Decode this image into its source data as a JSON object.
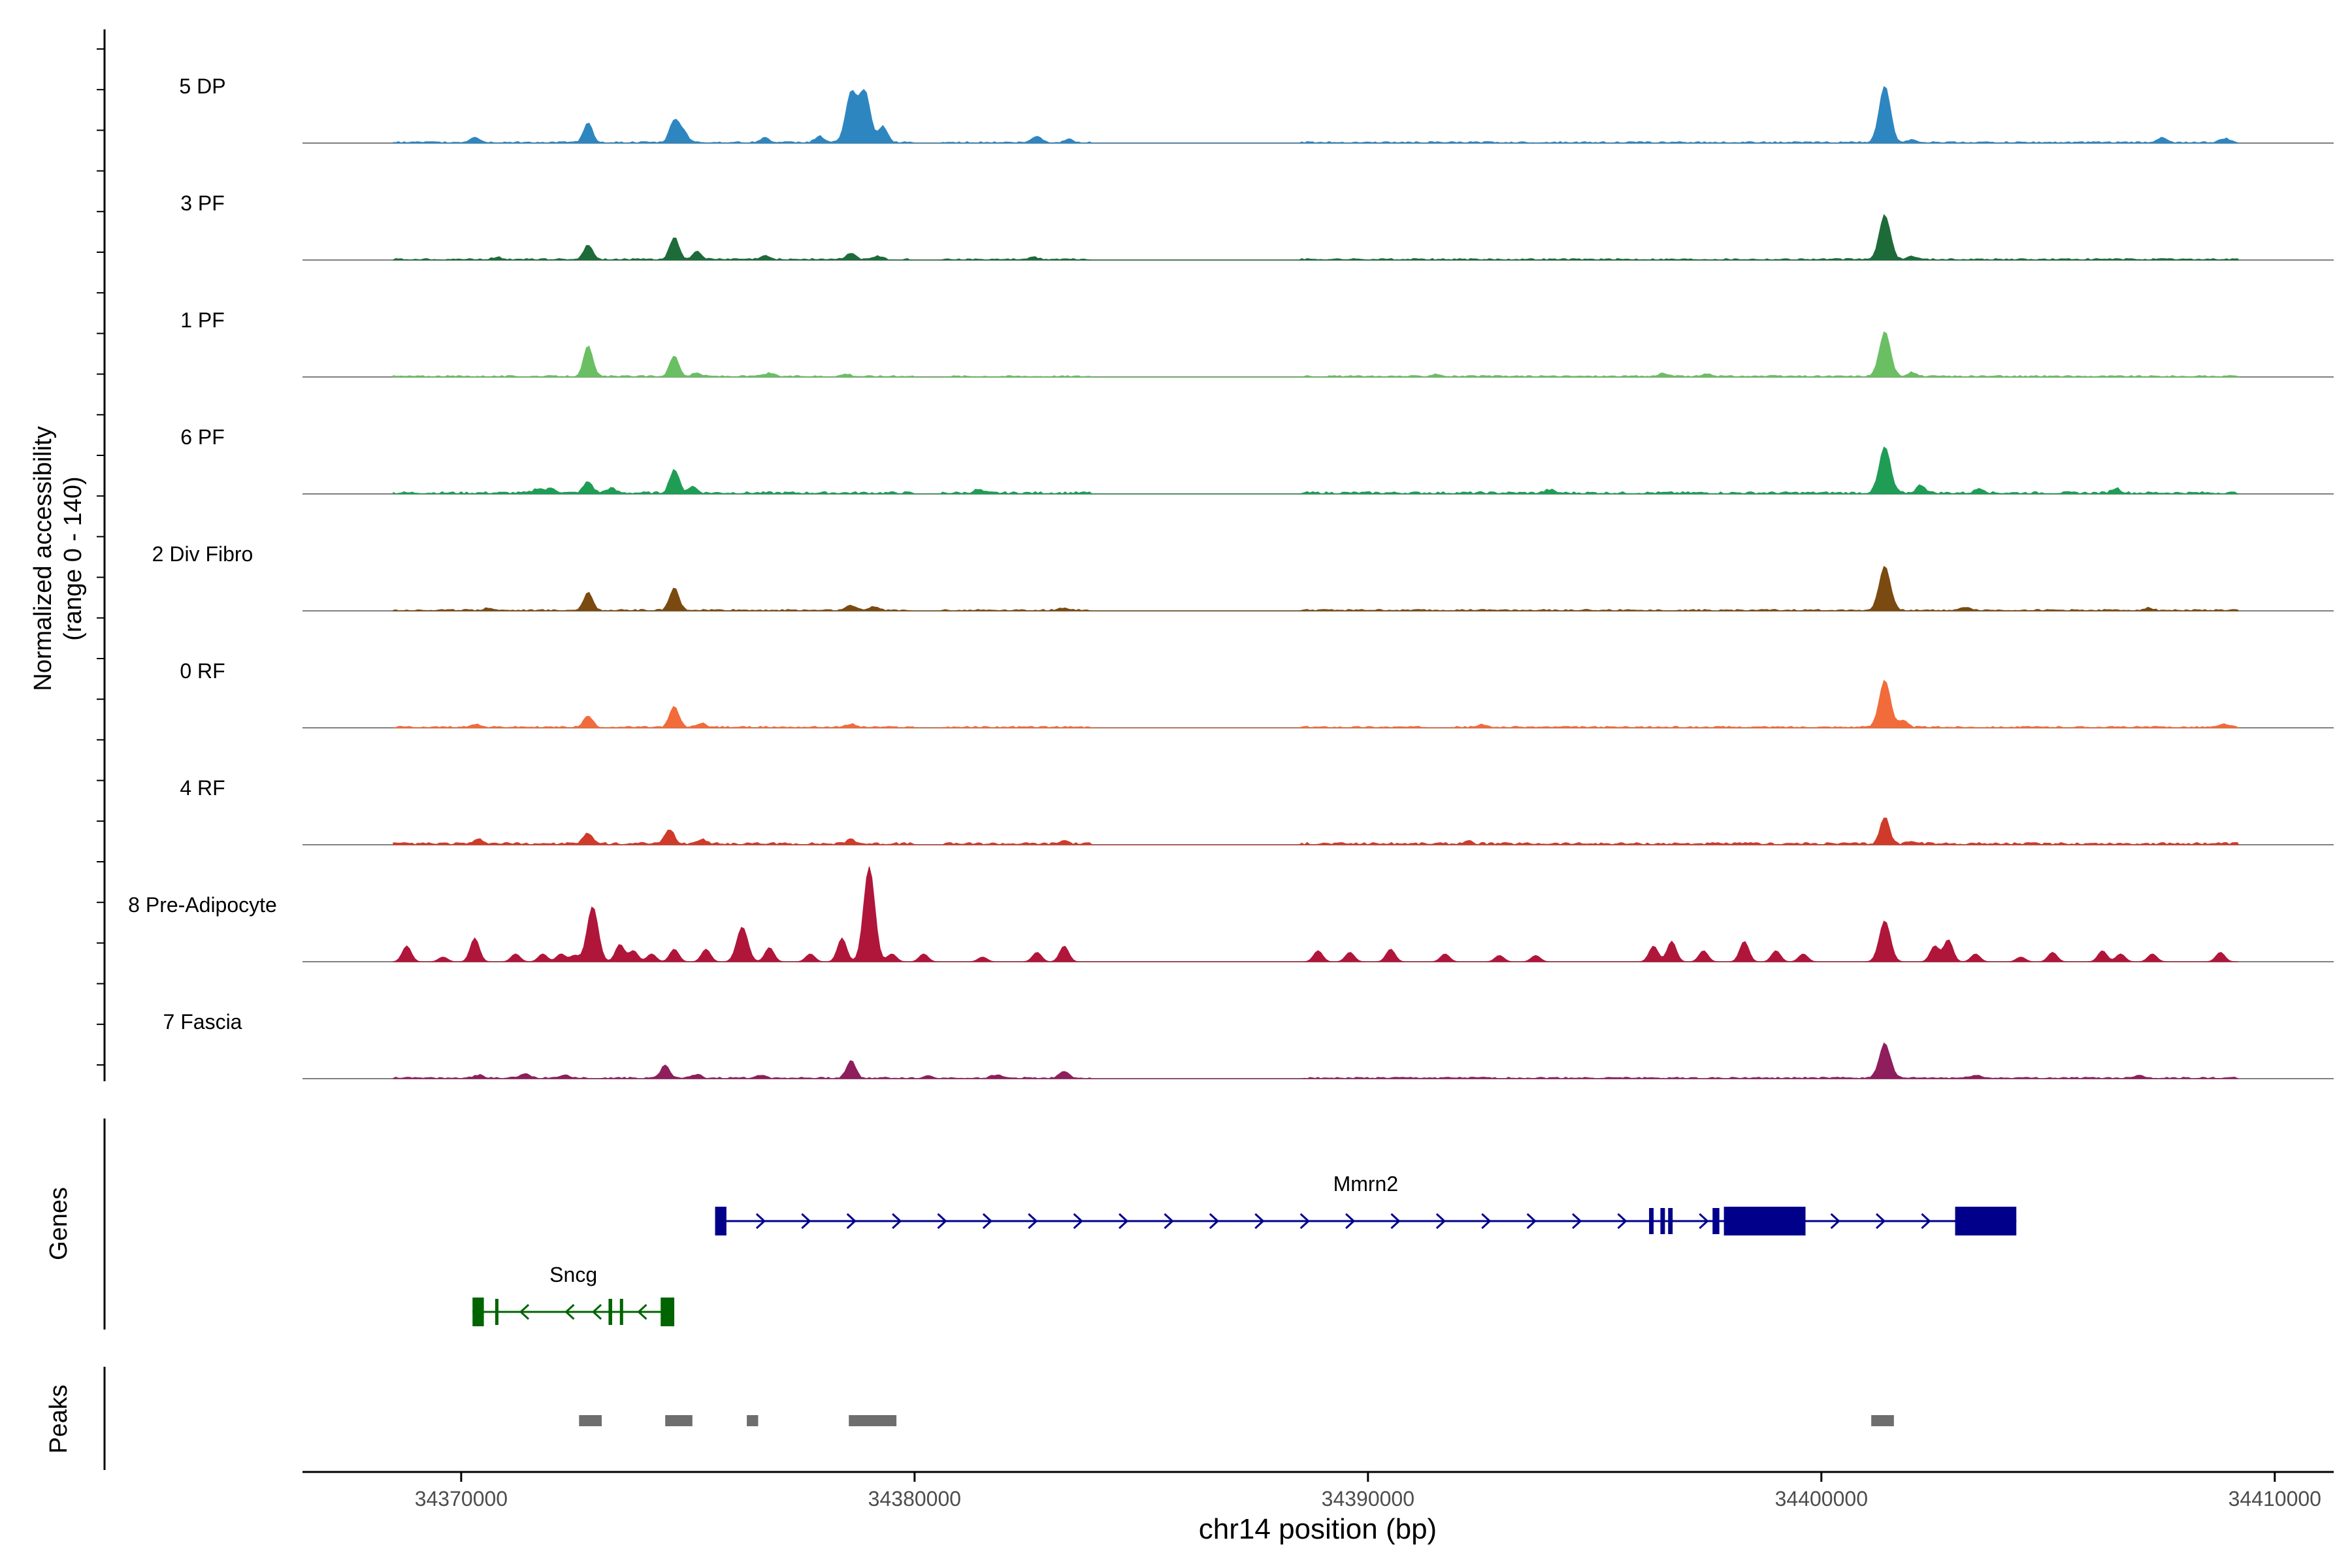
{
  "chart_data": {
    "type": "area",
    "title": "",
    "ylabel_line1": "Normalized accessibility",
    "ylabel_line2": "(range 0 - 140)",
    "ylim": [
      0,
      140
    ],
    "xlabel": "chr14 position (bp)",
    "xlim": [
      34366500,
      34411300
    ],
    "x_ticks": [
      34370000,
      34380000,
      34390000,
      34400000,
      34410000
    ],
    "x_tick_labels": [
      "34370000",
      "34380000",
      "34390000",
      "34400000",
      "34410000"
    ],
    "tracks": [
      {
        "name": "5 DP",
        "color": "#2E86C1",
        "noise": 2,
        "peaks": [
          [
            34370300,
            7
          ],
          [
            34372800,
            24
          ],
          [
            34374700,
            28
          ],
          [
            34374900,
            14
          ],
          [
            34376700,
            6
          ],
          [
            34377900,
            8
          ],
          [
            34378600,
            62
          ],
          [
            34378900,
            64
          ],
          [
            34379300,
            20
          ],
          [
            34382700,
            8
          ],
          [
            34383400,
            4
          ],
          [
            34401400,
            72
          ],
          [
            34402000,
            4
          ],
          [
            34407500,
            6
          ],
          [
            34408900,
            5
          ]
        ]
      },
      {
        "name": "3 PF",
        "color": "#1E6B3A",
        "noise": 2,
        "peaks": [
          [
            34370800,
            3
          ],
          [
            34372800,
            18
          ],
          [
            34374700,
            28
          ],
          [
            34375200,
            10
          ],
          [
            34376700,
            4
          ],
          [
            34378600,
            8
          ],
          [
            34379200,
            4
          ],
          [
            34382600,
            3
          ],
          [
            34401400,
            56
          ],
          [
            34402000,
            4
          ]
        ]
      },
      {
        "name": "1 PF",
        "color": "#6BBF63",
        "noise": 2,
        "peaks": [
          [
            34372800,
            38
          ],
          [
            34374700,
            26
          ],
          [
            34375200,
            4
          ],
          [
            34376800,
            4
          ],
          [
            34378500,
            3
          ],
          [
            34391500,
            3
          ],
          [
            34396500,
            4
          ],
          [
            34397500,
            3
          ],
          [
            34401400,
            56
          ],
          [
            34402000,
            5
          ]
        ]
      },
      {
        "name": "6 PF",
        "color": "#1F9D55",
        "noise": 3,
        "peaks": [
          [
            34371700,
            6
          ],
          [
            34372000,
            6
          ],
          [
            34372800,
            14
          ],
          [
            34373300,
            6
          ],
          [
            34374700,
            30
          ],
          [
            34375100,
            8
          ],
          [
            34381400,
            4
          ],
          [
            34394000,
            4
          ],
          [
            34401400,
            58
          ],
          [
            34402200,
            10
          ],
          [
            34403500,
            6
          ],
          [
            34406500,
            6
          ]
        ]
      },
      {
        "name": "2 Div Fibro",
        "color": "#7A4A10",
        "noise": 2,
        "peaks": [
          [
            34370600,
            3
          ],
          [
            34372800,
            22
          ],
          [
            34374700,
            28
          ],
          [
            34378600,
            6
          ],
          [
            34379100,
            5
          ],
          [
            34383300,
            3
          ],
          [
            34401400,
            56
          ],
          [
            34403200,
            4
          ],
          [
            34407200,
            3
          ]
        ]
      },
      {
        "name": "0 RF",
        "color": "#F26B3A",
        "noise": 2,
        "peaks": [
          [
            34370300,
            4
          ],
          [
            34372800,
            14
          ],
          [
            34374700,
            26
          ],
          [
            34375300,
            5
          ],
          [
            34378600,
            4
          ],
          [
            34392500,
            3
          ],
          [
            34401400,
            60
          ],
          [
            34401800,
            8
          ],
          [
            34408900,
            4
          ]
        ]
      },
      {
        "name": "4 RF",
        "color": "#D03A2A",
        "noise": 3,
        "peaks": [
          [
            34370400,
            5
          ],
          [
            34372800,
            14
          ],
          [
            34374600,
            18
          ],
          [
            34375300,
            6
          ],
          [
            34378600,
            6
          ],
          [
            34383300,
            4
          ],
          [
            34392200,
            3
          ],
          [
            34401400,
            34
          ],
          [
            34402000,
            4
          ]
        ]
      },
      {
        "name": "8 Pre-Adipocyte",
        "color": "#B0163A",
        "noise": 0,
        "peaks": [
          [
            34368800,
            20
          ],
          [
            34369600,
            6
          ],
          [
            34370300,
            30
          ],
          [
            34371200,
            10
          ],
          [
            34371800,
            10
          ],
          [
            34372200,
            10
          ],
          [
            34372500,
            8
          ],
          [
            34372900,
            70
          ],
          [
            34373500,
            22
          ],
          [
            34373800,
            14
          ],
          [
            34374200,
            10
          ],
          [
            34374700,
            16
          ],
          [
            34375400,
            16
          ],
          [
            34376200,
            44
          ],
          [
            34376800,
            18
          ],
          [
            34377700,
            10
          ],
          [
            34378400,
            30
          ],
          [
            34379000,
            120
          ],
          [
            34379500,
            10
          ],
          [
            34380200,
            10
          ],
          [
            34381500,
            6
          ],
          [
            34382700,
            12
          ],
          [
            34383300,
            20
          ],
          [
            34388900,
            14
          ],
          [
            34389600,
            12
          ],
          [
            34390500,
            16
          ],
          [
            34391700,
            10
          ],
          [
            34392900,
            8
          ],
          [
            34393700,
            8
          ],
          [
            34396300,
            20
          ],
          [
            34396700,
            26
          ],
          [
            34397400,
            14
          ],
          [
            34398300,
            26
          ],
          [
            34399000,
            14
          ],
          [
            34399600,
            10
          ],
          [
            34401400,
            52
          ],
          [
            34402500,
            20
          ],
          [
            34402800,
            28
          ],
          [
            34403400,
            10
          ],
          [
            34404400,
            6
          ],
          [
            34405100,
            12
          ],
          [
            34406200,
            14
          ],
          [
            34406600,
            10
          ],
          [
            34407300,
            10
          ],
          [
            34408800,
            12
          ]
        ]
      },
      {
        "name": "7 Fascia",
        "color": "#8E1E5C",
        "noise": 2,
        "peaks": [
          [
            34370400,
            4
          ],
          [
            34371400,
            6
          ],
          [
            34372300,
            4
          ],
          [
            34374500,
            16
          ],
          [
            34375200,
            4
          ],
          [
            34376600,
            4
          ],
          [
            34378600,
            22
          ],
          [
            34380300,
            4
          ],
          [
            34381800,
            4
          ],
          [
            34383300,
            8
          ],
          [
            34401400,
            44
          ],
          [
            34403400,
            4
          ],
          [
            34407000,
            4
          ]
        ]
      }
    ],
    "genes": [
      {
        "name": "Mmrn2",
        "color": "#00008B",
        "strand": "+",
        "start": 34375600,
        "end": 34404300,
        "exons": [
          [
            34375600,
            34375850
          ],
          [
            34396200,
            34396300
          ],
          [
            34396450,
            34396550
          ],
          [
            34396620,
            34396720
          ],
          [
            34397600,
            34397750
          ],
          [
            34397850,
            34399650
          ],
          [
            34402950,
            34404300
          ]
        ],
        "arrows": [
          34376600,
          34377600,
          34378600,
          34379600,
          34380600,
          34381600,
          34382600,
          34383600,
          34384600,
          34385600,
          34386600,
          34387600,
          34388600,
          34389600,
          34390600,
          34391600,
          34392600,
          34393600,
          34394600,
          34395600,
          34397400,
          34400300,
          34401300,
          34402300
        ]
      },
      {
        "name": "Sncg",
        "color": "#006400",
        "strand": "-",
        "start": 34370250,
        "end": 34374700,
        "exons": [
          [
            34370250,
            34370500
          ],
          [
            34370750,
            34370800
          ],
          [
            34373250,
            34373330
          ],
          [
            34373500,
            34373550
          ],
          [
            34374400,
            34374700
          ]
        ],
        "arrows": [
          34371400,
          34372400,
          34373000,
          34374000
        ]
      }
    ],
    "peaks_track": [
      [
        34372600,
        34373100
      ],
      [
        34374500,
        34375100
      ],
      [
        34376300,
        34376550
      ],
      [
        34378550,
        34379600
      ],
      [
        34401100,
        34401600
      ]
    ],
    "panel_labels": {
      "genes": "Genes",
      "peaks": "Peaks"
    }
  }
}
